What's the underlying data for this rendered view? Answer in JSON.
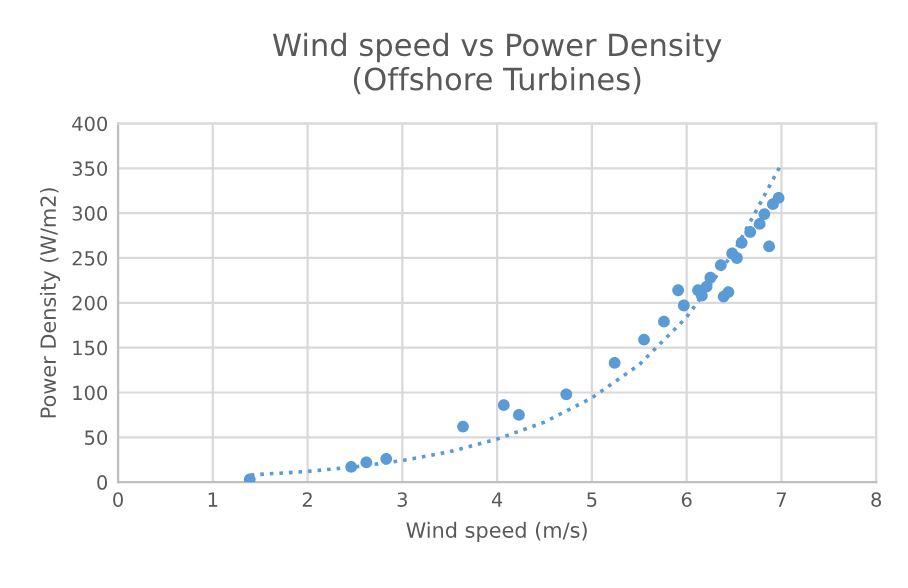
{
  "chart_data": {
    "type": "scatter",
    "title": "Wind speed vs Power Density\n(Offshore Turbines)",
    "xlabel": "Wind speed (m/s)",
    "ylabel": "Power Density (W/m2)",
    "xlim": [
      0,
      8
    ],
    "xticks": [
      0,
      1,
      2,
      3,
      4,
      5,
      6,
      7,
      8
    ],
    "ylim": [
      0,
      400
    ],
    "yticks": [
      0,
      50,
      100,
      150,
      200,
      250,
      300,
      350,
      400
    ],
    "grid": true,
    "legend": false,
    "series": [
      {
        "color": "#5b9bd5",
        "marker": "circle",
        "x": [
          1.39,
          2.46,
          2.62,
          2.83,
          3.64,
          4.07,
          4.23,
          4.73,
          5.24,
          5.55,
          5.76,
          5.91,
          5.97,
          6.12,
          6.16,
          6.21,
          6.25,
          6.36,
          6.39,
          6.44,
          6.48,
          6.53,
          6.58,
          6.67,
          6.77,
          6.82,
          6.87,
          6.91,
          6.97
        ],
        "values": [
          3,
          17,
          22,
          26,
          62,
          86,
          75,
          98,
          133,
          159,
          179,
          214,
          197,
          214,
          208,
          218,
          228,
          242,
          207,
          212,
          255,
          250,
          267,
          279,
          288,
          299,
          263,
          310,
          317
        ]
      },
      {
        "type": "line",
        "color": "#5b9bd5",
        "line_style": "dotted",
        "x": [
          1.4,
          2,
          2.5,
          3,
          3.5,
          4,
          4.5,
          5,
          5.5,
          6,
          6.5,
          7
        ],
        "values": [
          8,
          12,
          17,
          24,
          34,
          48,
          67,
          94,
          131,
          184,
          257,
          355
        ]
      }
    ]
  }
}
